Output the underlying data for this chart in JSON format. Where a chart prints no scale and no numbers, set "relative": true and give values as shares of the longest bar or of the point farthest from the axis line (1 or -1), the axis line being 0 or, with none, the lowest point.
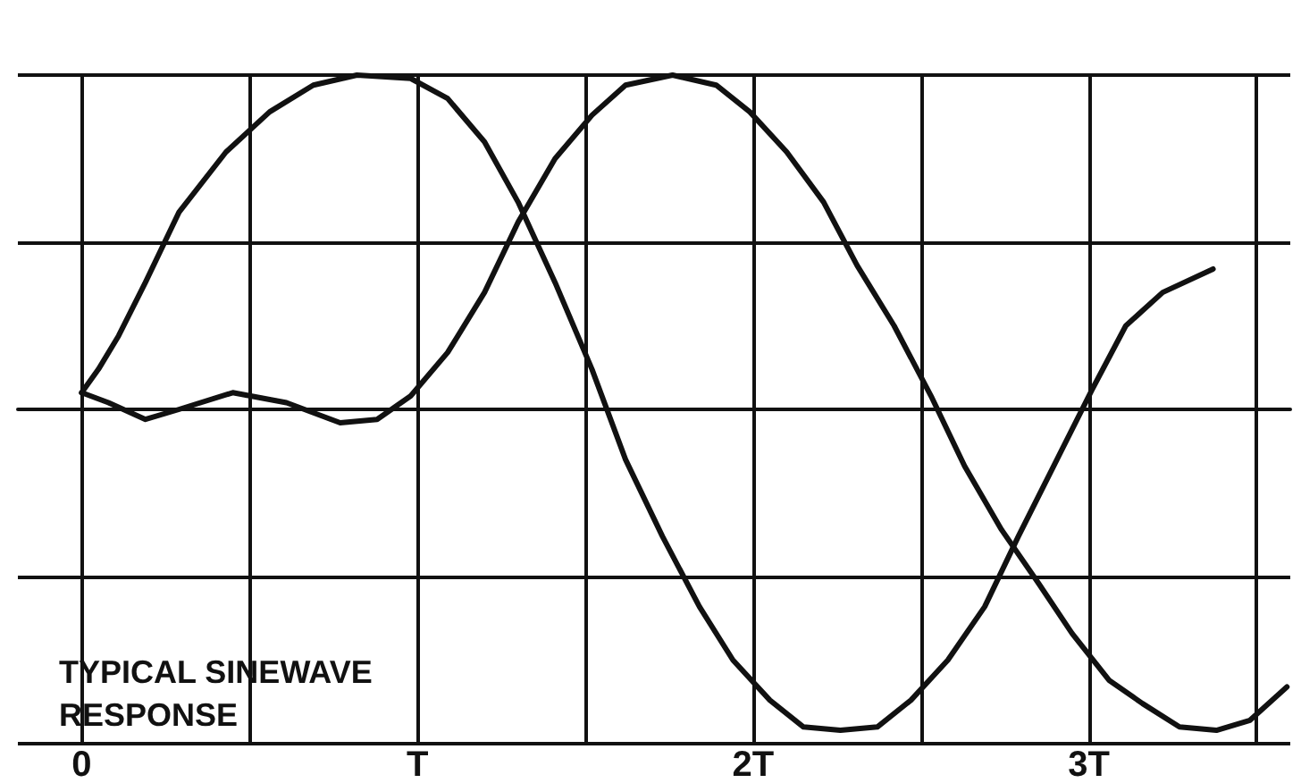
{
  "chart_data": {
    "type": "line",
    "relative": true,
    "grid": true,
    "marker": "none",
    "line_style": "solid",
    "xlim": [
      -0.19,
      3.6
    ],
    "xticks": [
      {
        "value": 0,
        "label": "0"
      },
      {
        "value": 0.5,
        "label": null
      },
      {
        "value": 1,
        "label": "T"
      },
      {
        "value": 1.5,
        "label": null
      },
      {
        "value": 2,
        "label": "2T"
      },
      {
        "value": 2.5,
        "label": null
      },
      {
        "value": 3,
        "label": "3T"
      },
      {
        "value": 3.5,
        "label": null
      }
    ],
    "annotations": [
      "TYPICAL SINEWAVE RESPONSE"
    ],
    "series": [
      {
        "color": "#111111",
        "x": [
          0,
          0.05,
          0.11,
          0.19,
          0.29,
          0.43,
          0.56,
          0.69,
          0.82,
          0.98,
          1.09,
          1.2,
          1.3,
          1.41,
          1.52,
          1.62,
          1.73,
          1.84,
          1.94,
          2.05,
          2.15,
          2.26,
          2.37,
          2.47,
          2.58,
          2.69,
          2.79,
          2.9,
          3.01,
          3.11,
          3.22,
          3.37
        ],
        "values": [
          0.05,
          0.12,
          0.22,
          0.38,
          0.59,
          0.77,
          0.89,
          0.97,
          1,
          0.99,
          0.93,
          0.8,
          0.62,
          0.38,
          0.12,
          -0.15,
          -0.38,
          -0.59,
          -0.75,
          -0.87,
          -0.95,
          -0.96,
          -0.95,
          -0.87,
          -0.75,
          -0.59,
          -0.38,
          -0.16,
          0.06,
          0.25,
          0.35,
          0.42
        ]
      },
      {
        "color": "#111111",
        "x": [
          0,
          0.08,
          0.19,
          0.29,
          0.45,
          0.61,
          0.77,
          0.88,
          0.98,
          1.09,
          1.2,
          1.3,
          1.41,
          1.52,
          1.62,
          1.76,
          1.89,
          1.99,
          2.1,
          2.21,
          2.31,
          2.42,
          2.53,
          2.63,
          2.74,
          2.85,
          2.95,
          3.06,
          3.16,
          3.27,
          3.38,
          3.48,
          3.59
        ],
        "values": [
          0.05,
          0.02,
          -0.03,
          0,
          0.05,
          0.02,
          -0.04,
          -0.03,
          0.04,
          0.17,
          0.35,
          0.56,
          0.75,
          0.88,
          0.97,
          1,
          0.97,
          0.89,
          0.77,
          0.62,
          0.43,
          0.25,
          0.04,
          -0.17,
          -0.36,
          -0.52,
          -0.67,
          -0.81,
          -0.88,
          -0.95,
          -0.96,
          -0.93,
          -0.83
        ]
      }
    ]
  }
}
